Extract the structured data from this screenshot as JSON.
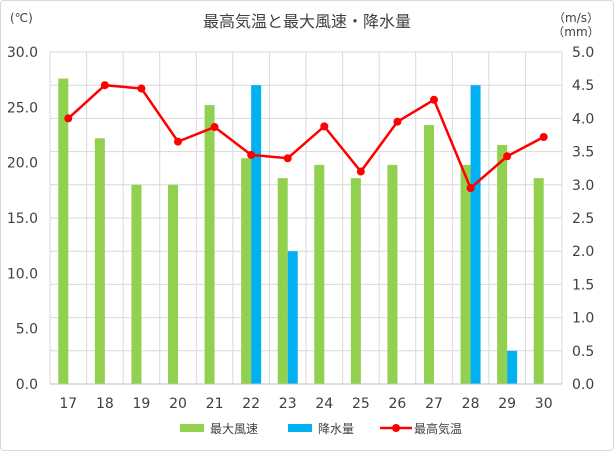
{
  "chart_data": {
    "type": "bar",
    "title": "最高気温と最大風速・降水量",
    "left_unit": "(℃)",
    "right_unit_top": "（m/s）",
    "right_unit_bottom": "（mm）",
    "categories": [
      "17",
      "18",
      "19",
      "20",
      "21",
      "22",
      "23",
      "24",
      "25",
      "26",
      "27",
      "28",
      "29",
      "30"
    ],
    "ylim_left": [
      0,
      30
    ],
    "ylim_right": [
      0,
      5
    ],
    "left_ticks": [
      "0.0",
      "5.0",
      "10.0",
      "15.0",
      "20.0",
      "25.0",
      "30.0"
    ],
    "right_ticks": [
      "0.0",
      "0.5",
      "1.0",
      "1.5",
      "2.0",
      "2.5",
      "3.0",
      "3.5",
      "4.0",
      "4.5",
      "5.0"
    ],
    "grid": true,
    "legend_position": "bottom",
    "series": [
      {
        "name": "最大風速",
        "kind": "bar",
        "axis": "left",
        "color": "#92d050",
        "values": [
          27.6,
          22.2,
          18.0,
          18.0,
          25.2,
          20.4,
          18.6,
          19.8,
          18.6,
          19.8,
          23.4,
          19.8,
          21.6,
          18.6
        ]
      },
      {
        "name": "降水量",
        "kind": "bar",
        "axis": "left",
        "color": "#00b0f0",
        "values": [
          null,
          null,
          null,
          null,
          null,
          27.0,
          12.0,
          null,
          null,
          null,
          null,
          27.0,
          3.0,
          null
        ]
      },
      {
        "name": "最高気温",
        "kind": "line",
        "axis": "right",
        "color": "#ff0000",
        "values": [
          4.0,
          4.5,
          4.45,
          3.65,
          3.87,
          3.45,
          3.4,
          3.88,
          3.2,
          3.95,
          4.28,
          2.95,
          3.43,
          3.72
        ]
      }
    ]
  }
}
